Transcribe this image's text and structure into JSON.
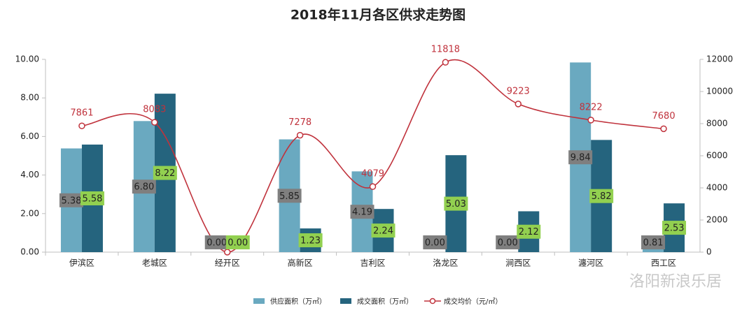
{
  "chart_data": {
    "type": "bar_line",
    "title": "2018年11月各区供求走势图",
    "categories": [
      "伊滨区",
      "老城区",
      "经开区",
      "高新区",
      "吉利区",
      "洛龙区",
      "涧西区",
      "瀍河区",
      "西工区"
    ],
    "series": [
      {
        "name": "供应面积（万㎡）",
        "color": "#6aa9c0",
        "type": "bar",
        "values": [
          5.38,
          6.8,
          0,
          5.85,
          4.19,
          0,
          0,
          9.84,
          0.81
        ],
        "value_labels": [
          "5.38",
          "6.80",
          "0.00",
          "5.85",
          "4.19",
          "0.00",
          "0.00",
          "9.84",
          "0.81"
        ],
        "label_color": "#7f7f7f"
      },
      {
        "name": "成交面积（万㎡）",
        "color": "#25647e",
        "type": "bar",
        "values": [
          5.58,
          8.22,
          0,
          1.23,
          2.24,
          5.03,
          2.12,
          5.82,
          2.53
        ],
        "value_labels": [
          "5.58",
          "8.22",
          "0.00",
          "1.23",
          "2.24",
          "5.03",
          "2.12",
          "5.82",
          "2.53"
        ],
        "label_color": "#92d050"
      },
      {
        "name": "成交均价（元/㎡）",
        "color": "#c0323c",
        "type": "line",
        "axis": "y2",
        "values": [
          7861,
          8083,
          0,
          7278,
          4079,
          11818,
          9223,
          8222,
          7680
        ],
        "value_labels": [
          "7861",
          "8083",
          null,
          "7278",
          "4079",
          "11818",
          "9223",
          "8222",
          "7680"
        ]
      }
    ],
    "ylim": [
      0,
      10
    ],
    "yticks": [
      {
        "value": 0,
        "label": "0.00"
      },
      {
        "value": 2,
        "label": "2.00"
      },
      {
        "value": 4,
        "label": "4.00"
      },
      {
        "value": 6,
        "label": "6.00"
      },
      {
        "value": 8,
        "label": "8.00"
      },
      {
        "value": 10,
        "label": "10.00"
      }
    ],
    "y2lim": [
      0,
      12000
    ],
    "y2ticks": [
      0,
      2000,
      4000,
      6000,
      8000,
      10000,
      12000
    ],
    "watermark": "洛阳新浪乐居"
  }
}
